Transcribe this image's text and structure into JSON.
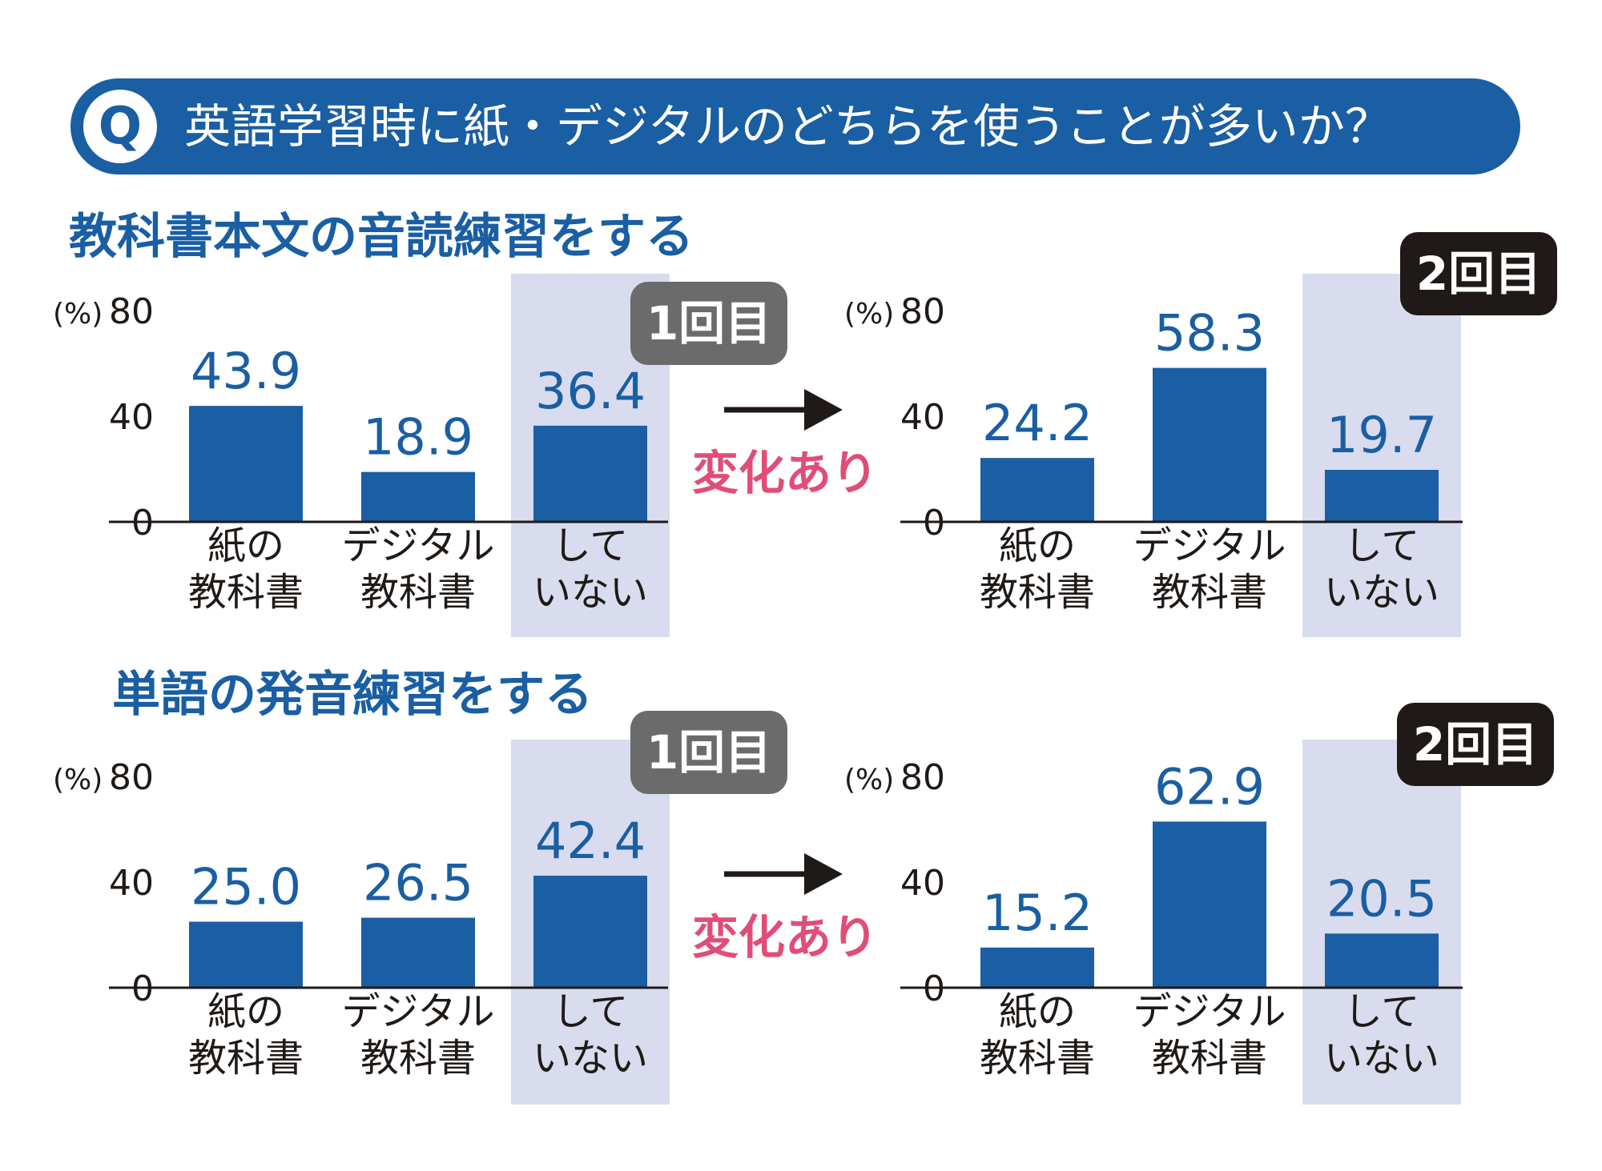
{
  "question": {
    "icon": "Q",
    "text": "英語学習時に紙・デジタルのどちらを使うことが多いか？"
  },
  "change_label": "変化あり",
  "colors": {
    "bar": "#1a5ea3",
    "highlight": "#d9dcee",
    "accent_pink": "#e04d78",
    "badge_round1": "#6b6b6b",
    "badge_round2": "#1f1a17"
  },
  "sections": [
    {
      "title": "教科書本文の音読練習をする",
      "charts": [
        {
          "badge": "1回目"
        },
        {
          "badge": "2回目"
        }
      ]
    },
    {
      "title": "単語の発音練習をする",
      "charts": [
        {
          "badge": "1回目"
        },
        {
          "badge": "2回目"
        }
      ]
    }
  ],
  "chart_data": [
    {
      "type": "bar",
      "unit": "(%)",
      "ylim": [
        0,
        80
      ],
      "yticks": [
        "80",
        "40",
        "0"
      ],
      "categories": [
        [
          "紙の",
          "教科書"
        ],
        [
          "デジタル",
          "教科書"
        ],
        [
          "して",
          "いない"
        ]
      ],
      "values": [
        43.9,
        18.9,
        36.4
      ],
      "value_labels": [
        "43.9",
        "18.9",
        "36.4"
      ],
      "highlight_category": 2
    },
    {
      "type": "bar",
      "unit": "(%)",
      "ylim": [
        0,
        80
      ],
      "yticks": [
        "80",
        "40",
        "0"
      ],
      "categories": [
        [
          "紙の",
          "教科書"
        ],
        [
          "デジタル",
          "教科書"
        ],
        [
          "して",
          "いない"
        ]
      ],
      "values": [
        24.2,
        58.3,
        19.7
      ],
      "value_labels": [
        "24.2",
        "58.3",
        "19.7"
      ],
      "highlight_category": 2
    },
    {
      "type": "bar",
      "unit": "(%)",
      "ylim": [
        0,
        80
      ],
      "yticks": [
        "80",
        "40",
        "0"
      ],
      "categories": [
        [
          "紙の",
          "教科書"
        ],
        [
          "デジタル",
          "教科書"
        ],
        [
          "して",
          "いない"
        ]
      ],
      "values": [
        25.0,
        26.5,
        42.4
      ],
      "value_labels": [
        "25.0",
        "26.5",
        "42.4"
      ],
      "highlight_category": 2
    },
    {
      "type": "bar",
      "unit": "(%)",
      "ylim": [
        0,
        80
      ],
      "yticks": [
        "80",
        "40",
        "0"
      ],
      "categories": [
        [
          "紙の",
          "教科書"
        ],
        [
          "デジタル",
          "教科書"
        ],
        [
          "して",
          "いない"
        ]
      ],
      "values": [
        15.2,
        62.9,
        20.5
      ],
      "value_labels": [
        "15.2",
        "62.9",
        "20.5"
      ],
      "highlight_category": 2
    }
  ]
}
